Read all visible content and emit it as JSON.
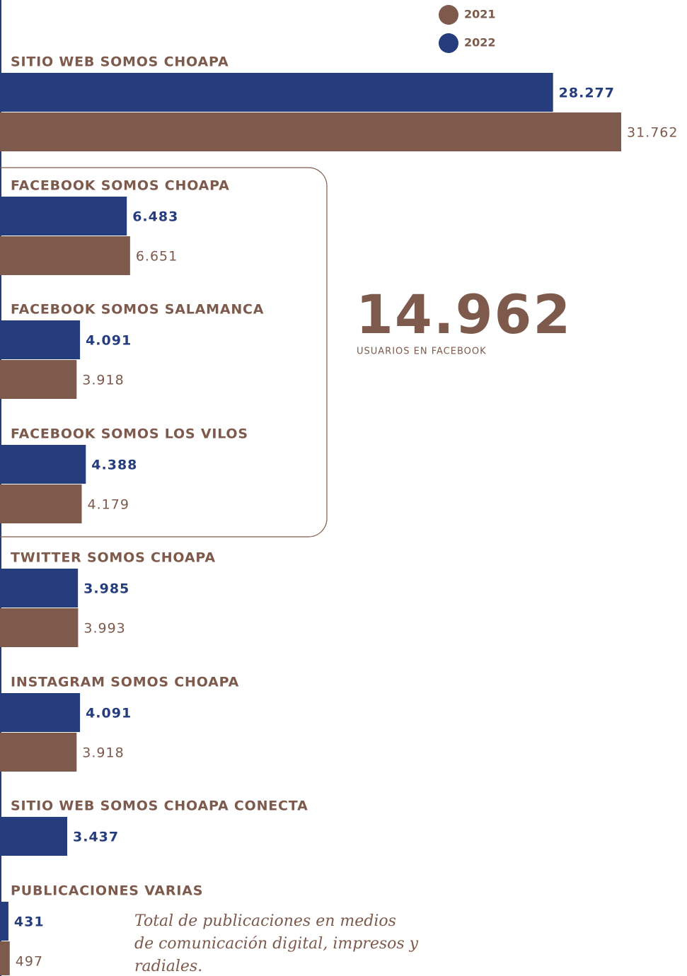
{
  "chart_data": {
    "type": "bar",
    "orientation": "horizontal",
    "categories": [
      "SITIO WEB SOMOS CHOAPA",
      "FACEBOOK SOMOS CHOAPA",
      "FACEBOOK SOMOS SALAMANCA",
      "FACEBOOK SOMOS LOS VILOS",
      "TWITTER SOMOS CHOAPA",
      "INSTAGRAM SOMOS CHOAPA",
      "SITIO WEB SOMOS CHOAPA CONECTA",
      "PUBLICACIONES VARIAS"
    ],
    "series": [
      {
        "name": "2021",
        "color": "#7d5a4c",
        "values": [
          31762,
          6651,
          3918,
          4179,
          3993,
          3918,
          null,
          497
        ],
        "value_labels": [
          "31.762",
          "6.651",
          "3.918",
          "4.179",
          "3.993",
          "3.918",
          null,
          "497"
        ]
      },
      {
        "name": "2022",
        "color": "#253c7d",
        "values": [
          28277,
          6483,
          4091,
          4388,
          3985,
          4091,
          3437,
          431
        ],
        "value_labels": [
          "28.277",
          "6.483",
          "4.091",
          "4.388",
          "3.985",
          "4.091",
          "3.437",
          "431"
        ]
      }
    ],
    "annotations": {
      "facebook_total": "14.962",
      "facebook_total_label": "USUARIOS EN FACEBOOK",
      "note": [
        "Total de publicaciones en medios",
        "de comunicación digital, impresos y",
        "radiales."
      ]
    }
  }
}
